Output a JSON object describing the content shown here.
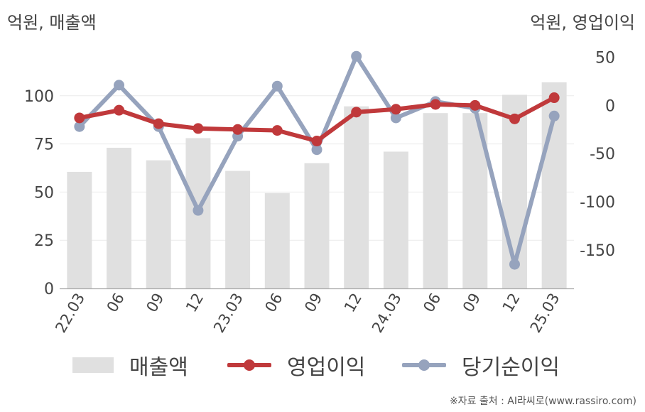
{
  "left_axis_title": "억원, 매출액",
  "right_axis_title": "억원, 영업이익",
  "source": "※자료 출처 : AI라씨로(www.rassiro.com)",
  "colors": {
    "revenue": "#e0e0e0",
    "operating_profit": "#c0393b",
    "net_income": "#96a3bd"
  },
  "chart_data": {
    "type": "bar",
    "categories": [
      "22.03",
      "06",
      "09",
      "12",
      "23.03",
      "06",
      "09",
      "12",
      "24.03",
      "06",
      "09",
      "12",
      "25.03"
    ],
    "left_axis": {
      "ylim": [
        0,
        125
      ],
      "ticks": [
        0,
        25,
        50,
        75,
        100
      ]
    },
    "right_axis": {
      "ylim": [
        -190,
        60
      ],
      "ticks": [
        -150,
        -100,
        -50,
        0,
        50
      ]
    },
    "series": [
      {
        "name": "매출액",
        "type": "bar",
        "axis": "left",
        "values": [
          60.5,
          73,
          66.5,
          78,
          61,
          49.5,
          65,
          94.5,
          71,
          91,
          91,
          100.5,
          107
        ]
      },
      {
        "name": "영업이익",
        "type": "line",
        "axis": "right",
        "values": [
          -13,
          -5,
          -19,
          -24,
          -25,
          -26,
          -37,
          -7,
          -4,
          1,
          0,
          -14,
          8
        ]
      },
      {
        "name": "당기순이익",
        "type": "line",
        "axis": "right",
        "values": [
          -22,
          21,
          -22,
          -109,
          -32,
          20,
          -46,
          51,
          -13,
          4,
          -3,
          -165,
          -11
        ]
      }
    ],
    "grid": true,
    "legend": "bottom"
  }
}
